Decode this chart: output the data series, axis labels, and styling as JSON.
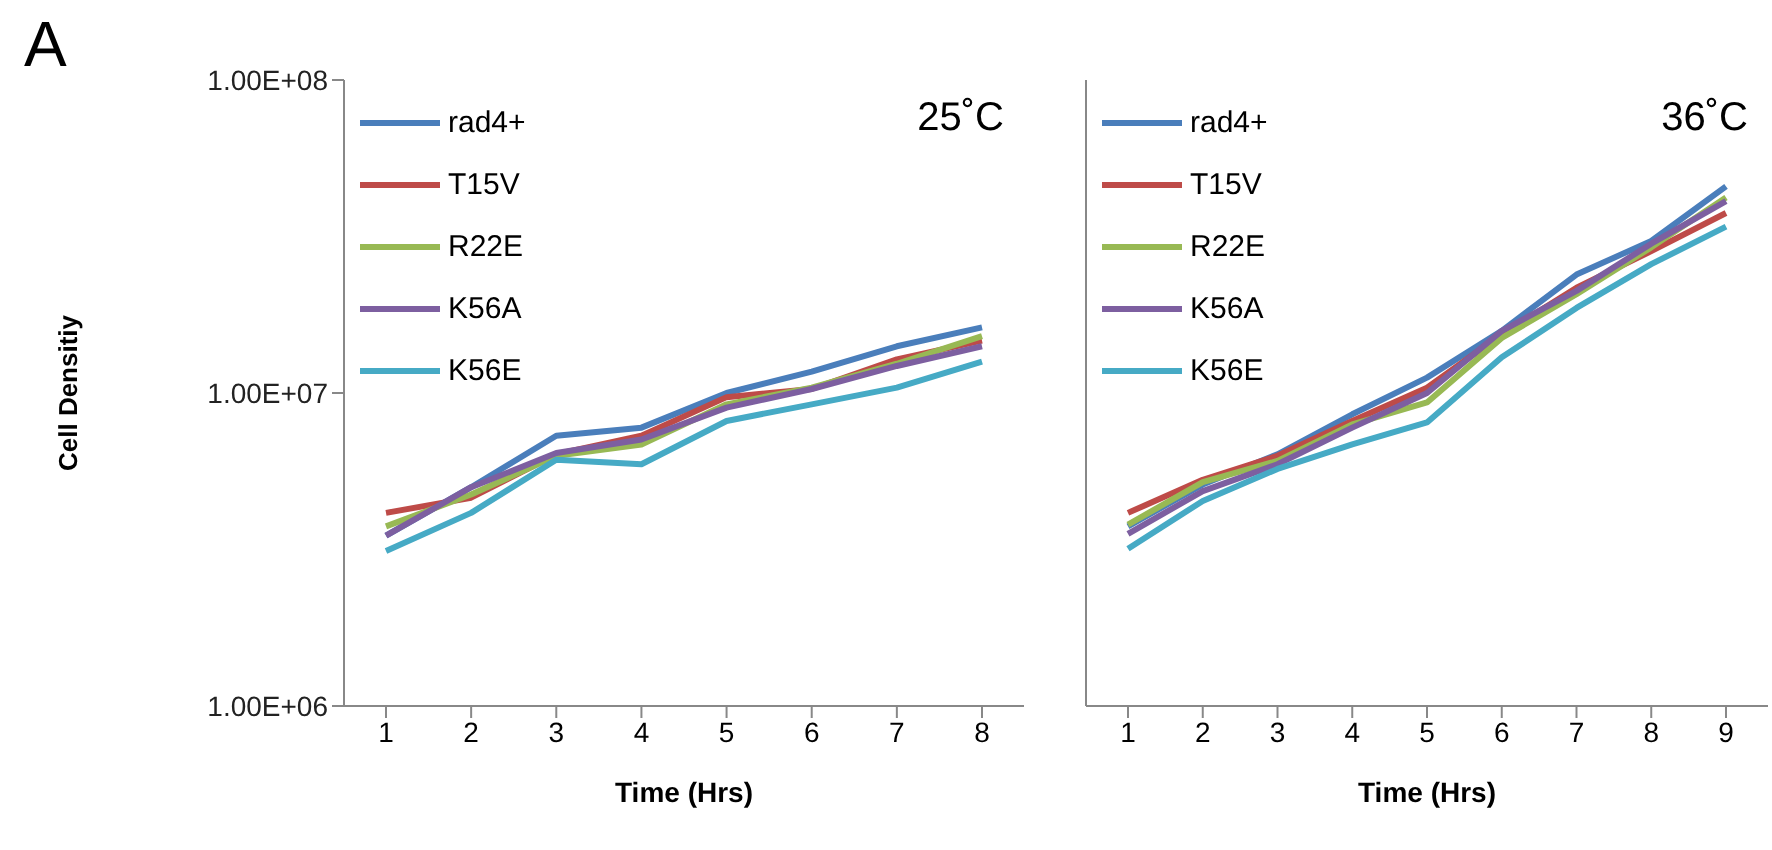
{
  "chart_data": [
    {
      "type": "line",
      "ylabel": "Cell Densitiy",
      "xlabel": "Time (Hrs)",
      "annotations": [
        "A",
        "25˚C"
      ],
      "categories": [
        "1",
        "2",
        "3",
        "4",
        "5",
        "6",
        "7",
        "8"
      ],
      "log": "y",
      "ylim": [
        1000000,
        100000000
      ],
      "yticks": [
        {
          "value": 1000000,
          "label": "1.00E+06"
        },
        {
          "value": 10000000,
          "label": "1.00E+07"
        },
        {
          "value": 100000000,
          "label": "1.00E+08"
        }
      ],
      "legend": "top left",
      "grid": false,
      "marker": "none",
      "series": [
        {
          "name": "rad4+",
          "color": "#4a7ebb",
          "values": [
            3500000,
            5000000,
            7300000,
            7750000,
            10000000,
            11700000,
            14100000,
            16200000
          ]
        },
        {
          "name": "T15V",
          "color": "#be4b48",
          "values": [
            4140000,
            4630000,
            6370000,
            7300000,
            9700000,
            10300000,
            12800000,
            14700000
          ]
        },
        {
          "name": "R22E",
          "color": "#98b954",
          "values": [
            3750000,
            4740000,
            6300000,
            6850000,
            9200000,
            10400000,
            12400000,
            15200000
          ]
        },
        {
          "name": "K56A",
          "color": "#7d5fa0",
          "values": [
            3500000,
            5000000,
            6430000,
            7100000,
            8980000,
            10300000,
            12200000,
            14100000
          ]
        },
        {
          "name": "K56E",
          "color": "#46aac5",
          "values": [
            3130000,
            4140000,
            6120000,
            5920000,
            8140000,
            9200000,
            10400000,
            12600000
          ]
        }
      ]
    },
    {
      "type": "line",
      "xlabel": "Time (Hrs)",
      "annotations": [
        "36˚C"
      ],
      "categories": [
        "1",
        "2",
        "3",
        "4",
        "5",
        "6",
        "7",
        "8",
        "9"
      ],
      "log": "y",
      "ylim": [
        1000000,
        100000000
      ],
      "yticks": [
        {
          "value": 1000000,
          "label": null
        },
        {
          "value": 10000000,
          "label": null
        },
        {
          "value": 100000000,
          "label": null
        }
      ],
      "tick_labels": "x",
      "legend": "top left",
      "grid": false,
      "marker": "none",
      "series": [
        {
          "name": "rad4+",
          "color": "#4a7ebb",
          "values": [
            3750000,
            5100000,
            6370000,
            8550000,
            11200000,
            15800000,
            23900000,
            30600000,
            45700000
          ]
        },
        {
          "name": "T15V",
          "color": "#be4b48",
          "values": [
            4140000,
            5280000,
            6300000,
            8140000,
            10400000,
            15400000,
            21700000,
            28400000,
            37600000
          ]
        },
        {
          "name": "R22E",
          "color": "#98b954",
          "values": [
            3800000,
            5190000,
            6070000,
            7940000,
            9330000,
            15000000,
            20700000,
            29200000,
            42100000
          ]
        },
        {
          "name": "K56A",
          "color": "#7d5fa0",
          "values": [
            3550000,
            4860000,
            5920000,
            7750000,
            10000000,
            15800000,
            21200000,
            30000000,
            41000000
          ]
        },
        {
          "name": "K56E",
          "color": "#46aac5",
          "values": [
            3180000,
            4520000,
            5720000,
            6850000,
            8050000,
            13000000,
            18700000,
            25800000,
            34000000
          ]
        }
      ]
    }
  ]
}
